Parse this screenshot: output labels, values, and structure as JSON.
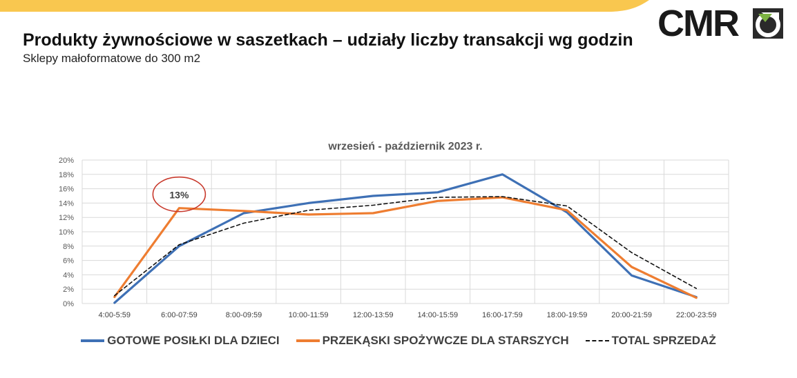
{
  "header": {
    "title": "Produkty żywnościowe w saszetkach – udziały liczby transakcji wg godzin",
    "subtitle": "Sklepy małoformatowe do 300 m2",
    "logo_text": "CMR",
    "accent_color": "#F9C74F"
  },
  "chart_data": {
    "type": "line",
    "title": "wrzesień - październik 2023 r.",
    "categories": [
      "4:00-5:59",
      "6:00-07:59",
      "8:00-09:59",
      "10:00-11:59",
      "12:00-13:59",
      "14:00-15:59",
      "16:00-17:59",
      "18:00-19:59",
      "20:00-21:59",
      "22:00-23:59"
    ],
    "y_ticks": [
      "0%",
      "2%",
      "4%",
      "6%",
      "8%",
      "10%",
      "12%",
      "14%",
      "16%",
      "18%",
      "20%"
    ],
    "ylim": [
      0,
      20
    ],
    "y_unit": "%",
    "grid": true,
    "legend_position": "bottom",
    "series": [
      {
        "name": "GOTOWE POSIŁKI DLA DZIECI",
        "color": "#3E70B5",
        "style": "solid",
        "values": [
          0.1,
          8.0,
          12.6,
          14.0,
          15.0,
          15.5,
          18.0,
          12.7,
          3.9,
          0.9
        ]
      },
      {
        "name": "PRZEKĄSKI SPOŻYWCZE DLA STARSZYCH",
        "color": "#EE7D31",
        "style": "solid",
        "values": [
          0.9,
          13.3,
          12.9,
          12.4,
          12.6,
          14.3,
          14.8,
          13.0,
          5.1,
          0.8
        ]
      },
      {
        "name": "TOTAL SPRZEDAŻ",
        "color": "#111111",
        "style": "dashed",
        "values": [
          1.1,
          8.2,
          11.2,
          13.0,
          13.7,
          14.8,
          14.9,
          13.6,
          7.1,
          2.1
        ]
      }
    ],
    "annotation": {
      "text": "13%",
      "series": 1,
      "category_index": 1,
      "circle_color": "#C8382B"
    }
  }
}
